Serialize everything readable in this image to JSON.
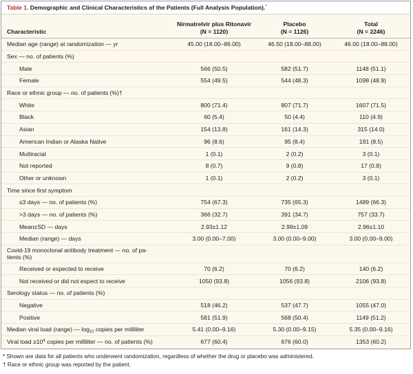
{
  "table": {
    "label": "Table 1.",
    "title": "Demographic and Clinical Characteristics of the Patients (Full Analysis Population).",
    "title_mark": "*",
    "columns": [
      {
        "line1": "Characteristic",
        "line2": ""
      },
      {
        "line1": "Nirmatrelvir plus Ritonavir",
        "line2": "(N = 1120)"
      },
      {
        "line1": "Placebo",
        "line2": "(N = 1126)"
      },
      {
        "line1": "Total",
        "line2": "(N = 2246)"
      }
    ],
    "rows": [
      {
        "label": "Median age (range) at randomization — yr",
        "indent": 0,
        "v": [
          "45.00 (18.00–86.00)",
          "46.50 (18.00–88.00)",
          "46.00 (18.00–88.00)"
        ]
      },
      {
        "label": "Sex — no. of patients (%)",
        "indent": 0,
        "v": [
          "",
          "",
          ""
        ]
      },
      {
        "label": "Male",
        "indent": 1,
        "v": [
          "566 (50.5)",
          "582 (51.7)",
          "1148 (51.1)"
        ]
      },
      {
        "label": "Female",
        "indent": 1,
        "v": [
          "554 (49.5)",
          "544 (48.3)",
          "1098 (48.9)"
        ]
      },
      {
        "label": "Race or ethnic group — no. of patients (%)†",
        "indent": 0,
        "v": [
          "",
          "",
          ""
        ]
      },
      {
        "label": "White",
        "indent": 1,
        "v": [
          "800 (71.4)",
          "807 (71.7)",
          "1607 (71.5)"
        ]
      },
      {
        "label": "Black",
        "indent": 1,
        "v": [
          "60 (5.4)",
          "50 (4.4)",
          "110 (4.9)"
        ]
      },
      {
        "label": "Asian",
        "indent": 1,
        "v": [
          "154 (13.8)",
          "161 (14.3)",
          "315 (14.0)"
        ]
      },
      {
        "label": "American Indian or Alaska Native",
        "indent": 1,
        "v": [
          "96 (8.6)",
          "95 (8.4)",
          "191 (8.5)"
        ]
      },
      {
        "label": "Multiracial",
        "indent": 1,
        "v": [
          "1 (0.1)",
          "2 (0.2)",
          "3 (0.1)"
        ]
      },
      {
        "label": "Not reported",
        "indent": 1,
        "v": [
          "8 (0.7)",
          "9 (0.8)",
          "17 (0.8)"
        ]
      },
      {
        "label": "Other or unknown",
        "indent": 1,
        "v": [
          "1 (0.1)",
          "2 (0.2)",
          "3 (0.1)"
        ]
      },
      {
        "label": "Time since first symptom",
        "indent": 0,
        "v": [
          "",
          "",
          ""
        ]
      },
      {
        "label": "≤3 days — no. of patients (%)",
        "indent": 1,
        "v": [
          "754 (67.3)",
          "735 (65.3)",
          "1489 (66.3)"
        ]
      },
      {
        "label": ">3 days — no. of patients (%)",
        "indent": 1,
        "v": [
          "366 (32.7)",
          "391 (34.7)",
          "757 (33.7)"
        ]
      },
      {
        "label": "Mean±SD — days",
        "indent": 1,
        "v": [
          "2.93±1.12",
          "2.99±1.09",
          "2.96±1.10"
        ]
      },
      {
        "label": "Median (range) — days",
        "indent": 1,
        "v": [
          "3.00 (0.00–7.00)",
          "3.00 (0.00–9.00)",
          "3.00 (0.00–9.00)"
        ]
      },
      {
        "label": "Covid-19 monoclonal antibody treatment — no. of pa-",
        "label_line2": "tients (%)",
        "indent": 0,
        "v": [
          "",
          "",
          ""
        ]
      },
      {
        "label": "Received or expected to receive",
        "indent": 1,
        "v": [
          "70 (6.2)",
          "70 (6.2)",
          "140 (6.2)"
        ]
      },
      {
        "label": "Not received or did not expect to receive",
        "indent": 1,
        "v": [
          "1050 (93.8)",
          "1056 (93.8)",
          "2106 (93.8)"
        ]
      },
      {
        "label": "Serology status — no. of patients (%)",
        "indent": 0,
        "v": [
          "",
          "",
          ""
        ]
      },
      {
        "label": "Negative",
        "indent": 1,
        "v": [
          "518 (46.2)",
          "537 (47.7)",
          "1055 (47.0)"
        ]
      },
      {
        "label": "Positive",
        "indent": 1,
        "v": [
          "581 (51.9)",
          "568 (50.4)",
          "1149 (51.2)"
        ]
      },
      {
        "label": "Median viral load (range) — log",
        "label_sub": "10",
        "label_tail": " copies per milliliter",
        "indent": 0,
        "v": [
          "5.41 (0.00–9.16)",
          "5.30 (0.00–9.15)",
          "5.35 (0.00–9.16)"
        ]
      },
      {
        "label": "Viral load ≥10",
        "label_sup": "4",
        "label_tail": " copies per milliliter — no. of patients (%)",
        "indent": 0,
        "v": [
          "677 (60.4)",
          "676 (60.0)",
          "1353 (60.2)"
        ]
      }
    ]
  },
  "footnotes": [
    "* Shown are data for all patients who underwent randomization, regardless of whether the drug or placebo was administered.",
    "† Race or ethnic group was reported by the patient."
  ]
}
